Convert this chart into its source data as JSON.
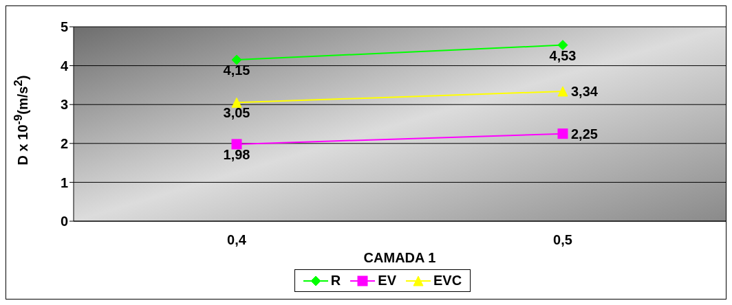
{
  "chart_data": {
    "type": "line",
    "xlabel": "CAMADA 1",
    "ylabel": "D x 10$^{-9}$(m/s$^{2}$)",
    "categories": [
      "0,4",
      "0,5"
    ],
    "series": [
      {
        "name": "R",
        "color": "#00ff00",
        "marker": "diamond",
        "values": [
          4.15,
          4.53
        ],
        "value_labels": [
          "4,15",
          "4,53"
        ]
      },
      {
        "name": "EV",
        "color": "#ff00ff",
        "marker": "square",
        "values": [
          1.98,
          2.25
        ],
        "value_labels": [
          "1,98",
          "2,25"
        ]
      },
      {
        "name": "EVC",
        "color": "#ffff00",
        "marker": "triangle",
        "values": [
          3.05,
          3.34
        ],
        "value_labels": [
          "3,05",
          "3,34"
        ]
      }
    ],
    "ylim": [
      0,
      5
    ],
    "yticks": [
      0,
      1,
      2,
      3,
      4,
      5
    ],
    "grid": "y",
    "legend": "bottom"
  }
}
